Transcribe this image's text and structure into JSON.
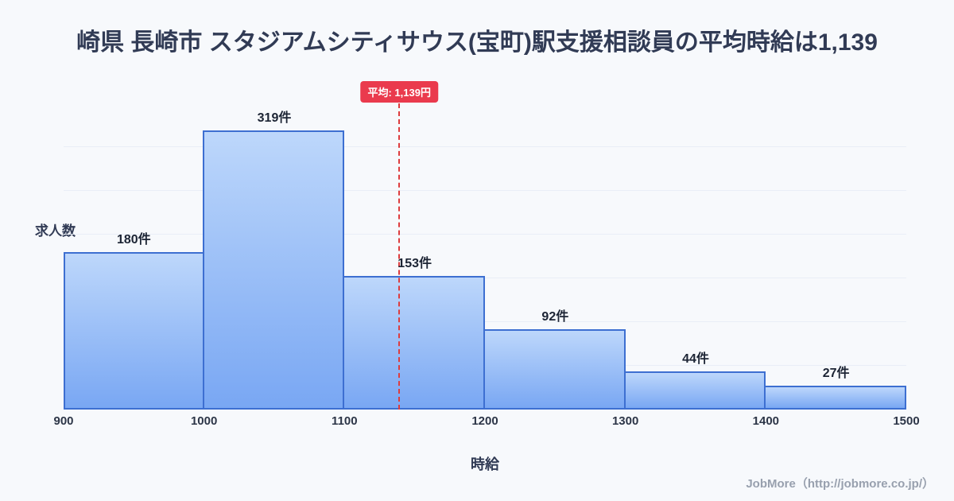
{
  "title": "崎県 長崎市 スタジアムシティサウス(宝町)駅支援相談員の平均時給は1,139",
  "footer": "JobMore（http://jobmore.co.jp/）",
  "average_badge": "平均: 1,139円",
  "colors": {
    "background": "#f7f9fc",
    "title_text": "#313b55",
    "bar_border": "#3d6fd1",
    "bar_fill_top": "#bdd7fb",
    "bar_fill_bottom": "#79a7f3",
    "average_line": "#dd3c3e",
    "badge_bg": "#ea3a4d",
    "badge_text": "#ffffff",
    "label_text": "#1c2434",
    "tick_text": "#2c3547",
    "footer_text": "#98a0ae",
    "gridline": "#e9eef7"
  },
  "chart_data": {
    "type": "bar",
    "title": "崎県 長崎市 スタジアムシティサウス(宝町)駅支援相談員の平均時給は1,139",
    "xlabel": "時給",
    "ylabel": "求人数",
    "bins": [
      900,
      1000,
      1100,
      1200,
      1300,
      1400,
      1500
    ],
    "categories": [
      "900-1000",
      "1000-1100",
      "1100-1200",
      "1200-1300",
      "1300-1400",
      "1400-1500"
    ],
    "values": [
      180,
      319,
      153,
      92,
      44,
      27
    ],
    "value_labels": [
      "180件",
      "319件",
      "153件",
      "92件",
      "44件",
      "27件"
    ],
    "value_label_suffix": "件",
    "x_ticks": [
      900,
      1000,
      1100,
      1200,
      1300,
      1400,
      1500
    ],
    "xlim": [
      900,
      1500
    ],
    "ylim": [
      0,
      350
    ],
    "grid": true,
    "grid_step": 50,
    "legend": "none",
    "average": 1139,
    "average_label": "平均: 1,139円"
  }
}
